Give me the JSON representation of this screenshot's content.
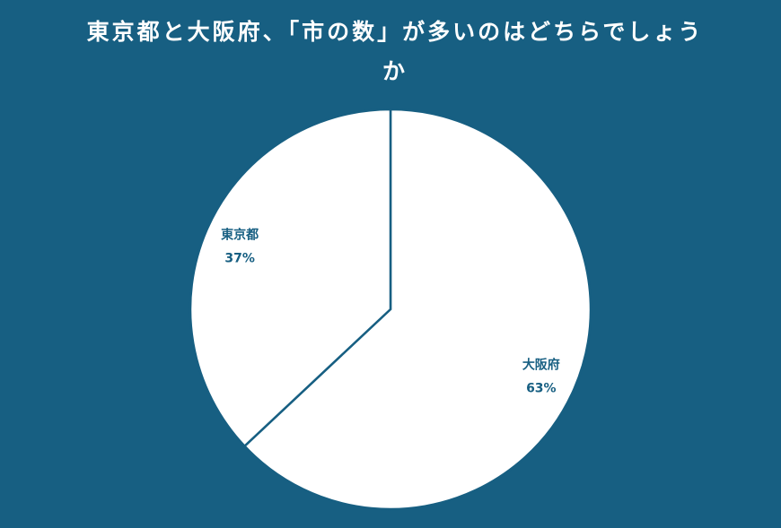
{
  "chart_data": {
    "type": "pie",
    "title": "東京都と大阪府、「市の数」が多いのはどちらでしょうか",
    "slices": [
      {
        "label": "大阪府",
        "value": 63,
        "value_label": "63%"
      },
      {
        "label": "東京都",
        "value": 37,
        "value_label": "37%"
      }
    ],
    "start_angle": "top",
    "direction": "clockwise",
    "colors": {
      "background": "#175f82",
      "slice_fill": "#ffffff",
      "slice_stroke": "#175f82",
      "label": "#175f82"
    }
  }
}
